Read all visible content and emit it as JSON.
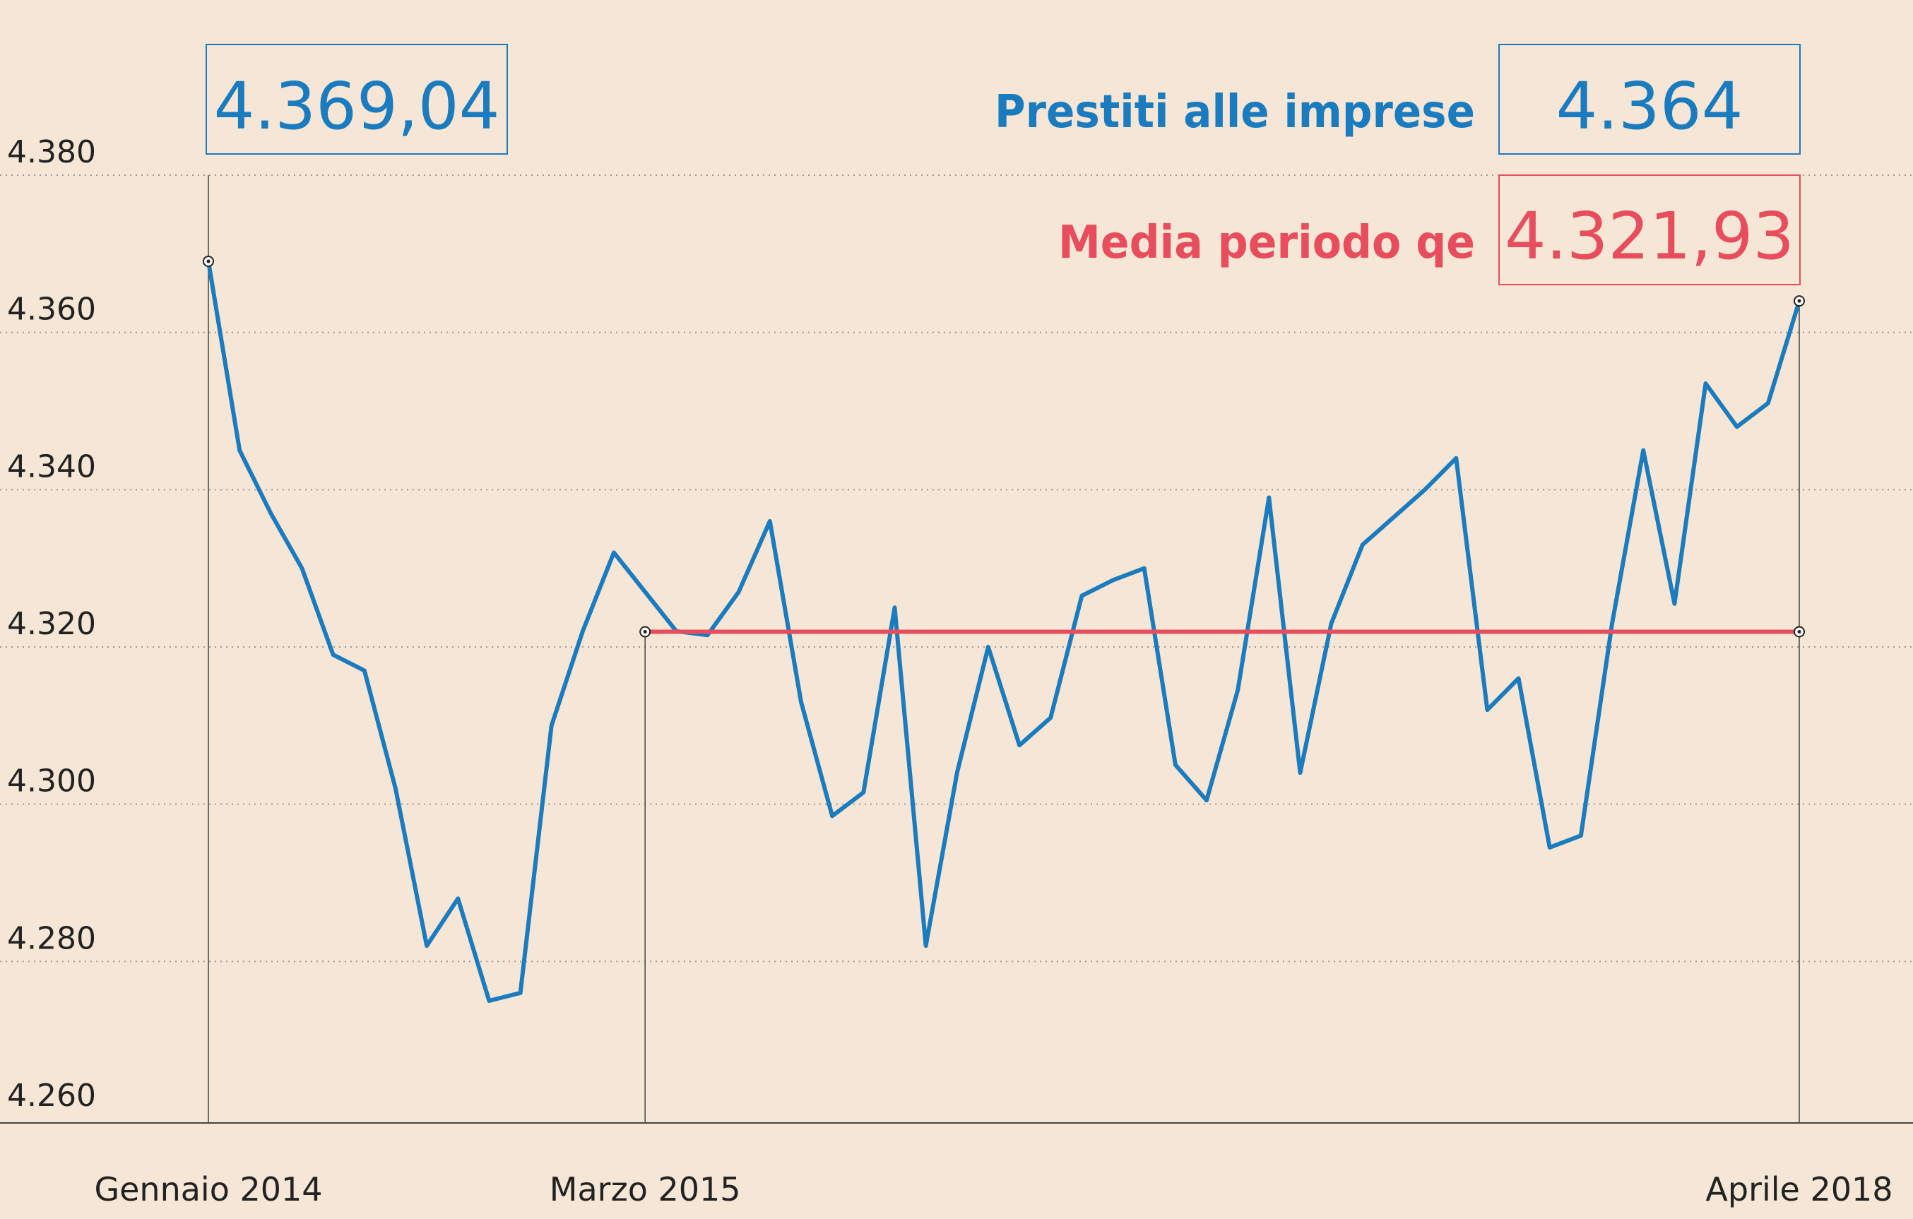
{
  "colors": {
    "background": "#f5e6d6",
    "loans": "#1b7bbf",
    "average": "#e84d5d",
    "axis": "#444444",
    "grid": "#9a9a9a"
  },
  "chart_data": {
    "type": "line",
    "title": "",
    "xlabel": "",
    "ylabel": "",
    "ylim": [
      4260,
      4380
    ],
    "grid": true,
    "y_ticks": [
      {
        "value": 4260,
        "label": "4.260"
      },
      {
        "value": 4280,
        "label": "4.280"
      },
      {
        "value": 4300,
        "label": "4.300"
      },
      {
        "value": 4320,
        "label": "4.320"
      },
      {
        "value": 4340,
        "label": "4.340"
      },
      {
        "value": 4360,
        "label": "4.360"
      },
      {
        "value": 4380,
        "label": "4.380"
      }
    ],
    "x_ticks": [
      {
        "x": "2014-01",
        "label": "Gennaio 2014"
      },
      {
        "x": "2015-03",
        "label": "Marzo 2015"
      },
      {
        "x": "2018-04",
        "label": "Aprile 2018"
      }
    ],
    "series": [
      {
        "name": "Prestiti alle imprese",
        "x": [
          "2014-01",
          "2014-02",
          "2014-03",
          "2014-04",
          "2014-05",
          "2014-06",
          "2014-07",
          "2014-08",
          "2014-09",
          "2014-10",
          "2014-11",
          "2014-12",
          "2015-01",
          "2015-02",
          "2015-03",
          "2015-04",
          "2015-05",
          "2015-06",
          "2015-07",
          "2015-08",
          "2015-09",
          "2015-10",
          "2015-11",
          "2015-12",
          "2016-01",
          "2016-02",
          "2016-03",
          "2016-04",
          "2016-05",
          "2016-06",
          "2016-07",
          "2016-08",
          "2016-09",
          "2016-10",
          "2016-11",
          "2016-12",
          "2017-01",
          "2017-02",
          "2017-03",
          "2017-04",
          "2017-05",
          "2017-06",
          "2017-07",
          "2017-08",
          "2017-09",
          "2017-10",
          "2017-11",
          "2017-12",
          "2018-01",
          "2018-02",
          "2018-03",
          "2018-04"
        ],
        "values": [
          4369.04,
          4345,
          4337,
          4330,
          4319,
          4317,
          4302,
          4282,
          4288,
          4275,
          4276,
          4310,
          4322,
          4332,
          4327,
          4322,
          4321.5,
          4327,
          4336,
          4313,
          4298.5,
          4301.5,
          4325,
          4282,
          4304,
          4320,
          4307.5,
          4311,
          4326.5,
          4328.5,
          4330,
          4305,
          4300.5,
          4314.5,
          4339,
          4304,
          4323,
          4333,
          4336.5,
          4340,
          4344,
          4312,
          4316,
          4294.5,
          4296,
          4323,
          4345,
          4325.5,
          4353.5,
          4348,
          4351,
          4364
        ]
      },
      {
        "name": "Media periodo qe",
        "x": [
          "2015-03",
          "2018-04"
        ],
        "values": [
          4321.93,
          4321.93
        ]
      }
    ],
    "callouts": {
      "start_value": "4.369,04",
      "loans_label": "Prestiti alle imprese",
      "loans_value": "4.364",
      "average_label": "Media periodo qe",
      "average_value": "4.321,93"
    }
  }
}
